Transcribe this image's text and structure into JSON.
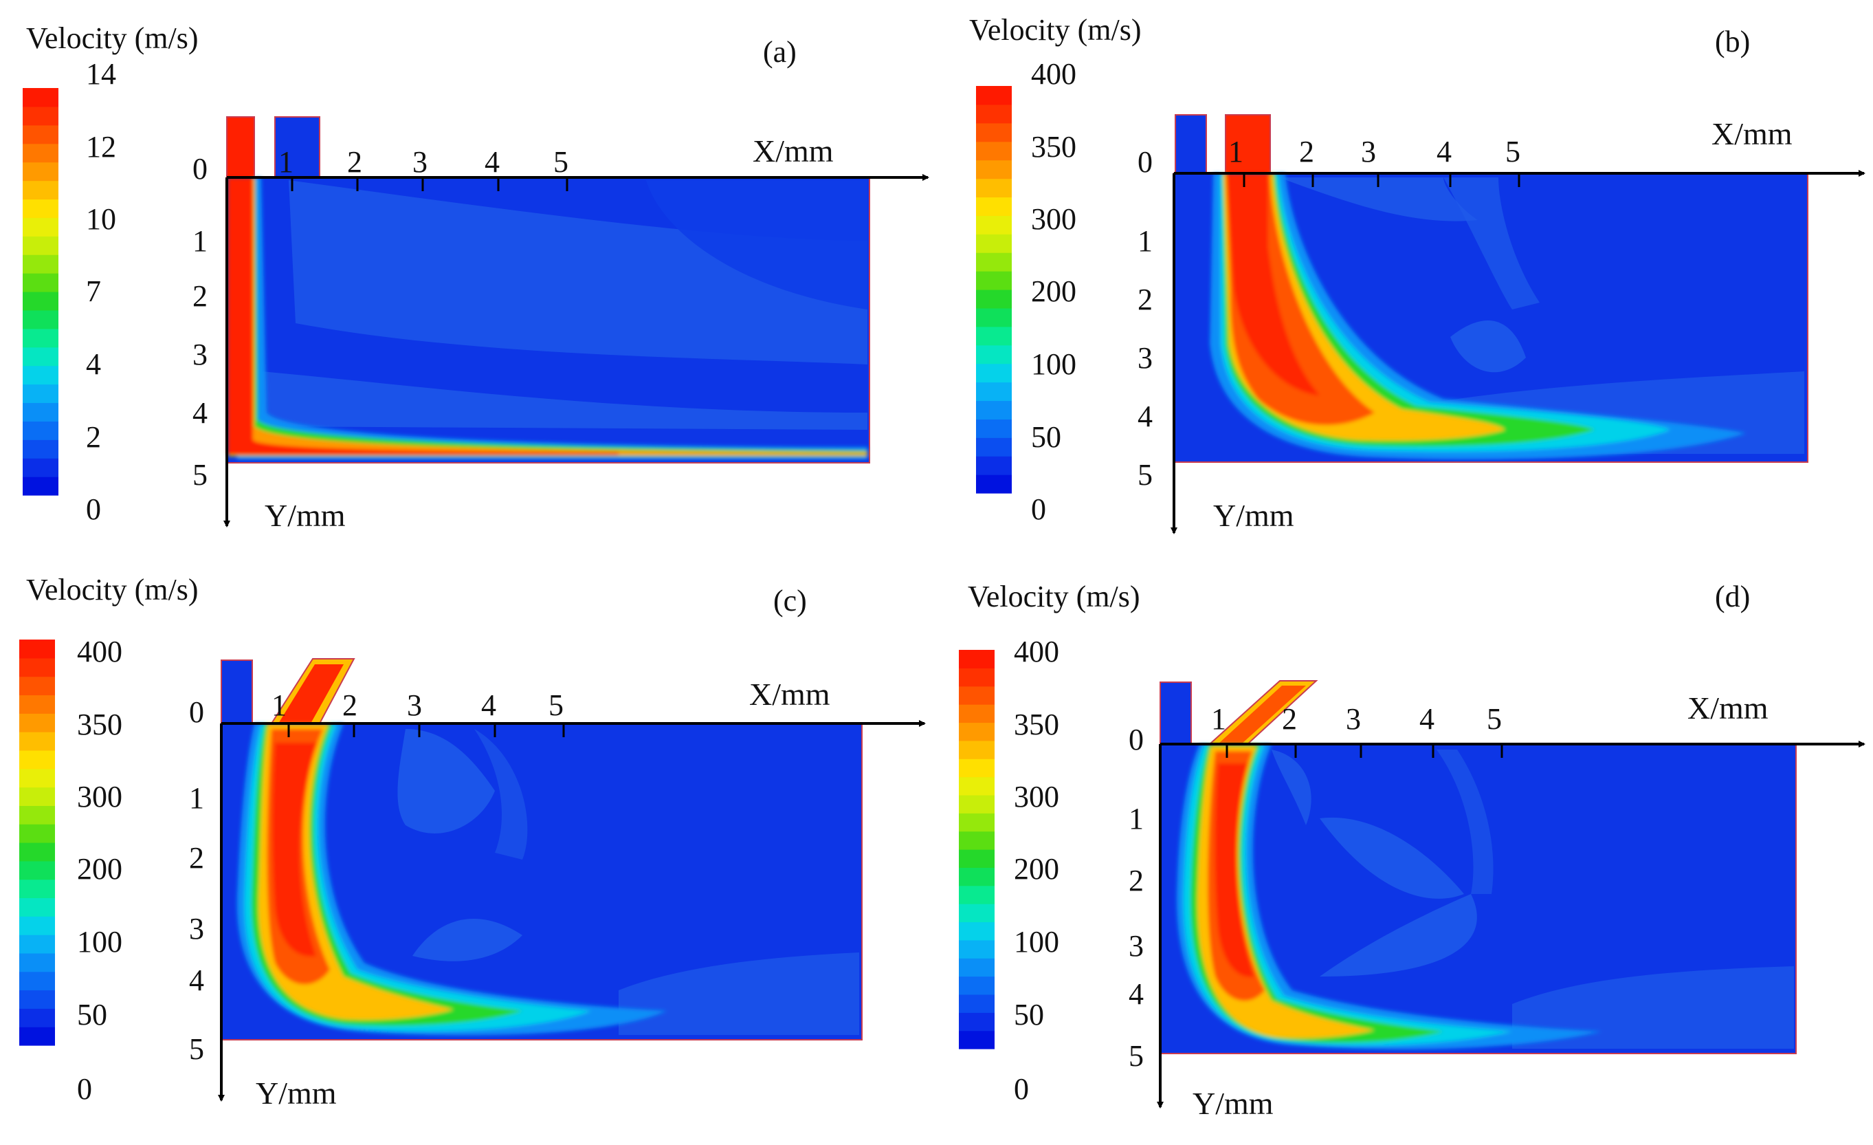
{
  "figure": {
    "colormap": [
      "#0012e0",
      "#0a2ee8",
      "#0b4ef0",
      "#0a6ef5",
      "#0a8ff7",
      "#08b2f5",
      "#05d2ea",
      "#05e6c2",
      "#08ea90",
      "#0fe05a",
      "#25d82a",
      "#5bde12",
      "#95e80c",
      "#c8ee0a",
      "#e9ef08",
      "#ffe000",
      "#ffbe00",
      "#ff9a00",
      "#ff7800",
      "#ff5400",
      "#ff3200",
      "#ff1a00"
    ],
    "field_colors": {
      "background": "#0d36e6",
      "recirc_light": "#1f5bea",
      "recirc_mid": "#1a4ce8",
      "outline": "#c83c50"
    },
    "panels": [
      {
        "id": "a",
        "label": "(a)",
        "legend_title": "Velocity (m/s)",
        "legend_ticks": [
          "14",
          "12",
          "10",
          "7",
          "4",
          "2",
          "0"
        ],
        "x_axis_label": "X/mm",
        "y_axis_label": "Y/mm",
        "x_ticks": [
          "1",
          "2",
          "3",
          "4",
          "5"
        ],
        "y_ticks": [
          "0",
          "1",
          "2",
          "3",
          "4",
          "5"
        ],
        "inlet": "vertical",
        "jet_peak": "#ff2000"
      },
      {
        "id": "b",
        "label": "(b)",
        "legend_title": "Velocity (m/s)",
        "legend_ticks": [
          "400",
          "350",
          "300",
          "200",
          "100",
          "50",
          "0"
        ],
        "x_axis_label": "X/mm",
        "y_axis_label": "Y/mm",
        "x_ticks": [
          "1",
          "2",
          "3",
          "4",
          "5"
        ],
        "y_ticks": [
          "0",
          "1",
          "2",
          "3",
          "4",
          "5"
        ],
        "inlet": "vertical",
        "jet_peak": "#ff2800"
      },
      {
        "id": "c",
        "label": "(c)",
        "legend_title": "Velocity (m/s)",
        "legend_ticks": [
          "400",
          "350",
          "300",
          "200",
          "100",
          "50",
          "0"
        ],
        "x_axis_label": "X/mm",
        "y_axis_label": "Y/mm",
        "x_ticks": [
          "1",
          "2",
          "3",
          "4",
          "5"
        ],
        "y_ticks": [
          "0",
          "1",
          "2",
          "3",
          "4",
          "5"
        ],
        "inlet": "inclined",
        "jet_peak": "#ff2800"
      },
      {
        "id": "d",
        "label": "(d)",
        "legend_title": "Velocity (m/s)",
        "legend_ticks": [
          "400",
          "350",
          "300",
          "200",
          "100",
          "50",
          "0"
        ],
        "x_axis_label": "X/mm",
        "y_axis_label": "Y/mm",
        "x_ticks": [
          "1",
          "2",
          "3",
          "4",
          "5"
        ],
        "y_ticks": [
          "0",
          "1",
          "2",
          "3",
          "4",
          "5"
        ],
        "inlet": "inclined",
        "jet_peak": "#ff2800"
      }
    ]
  }
}
